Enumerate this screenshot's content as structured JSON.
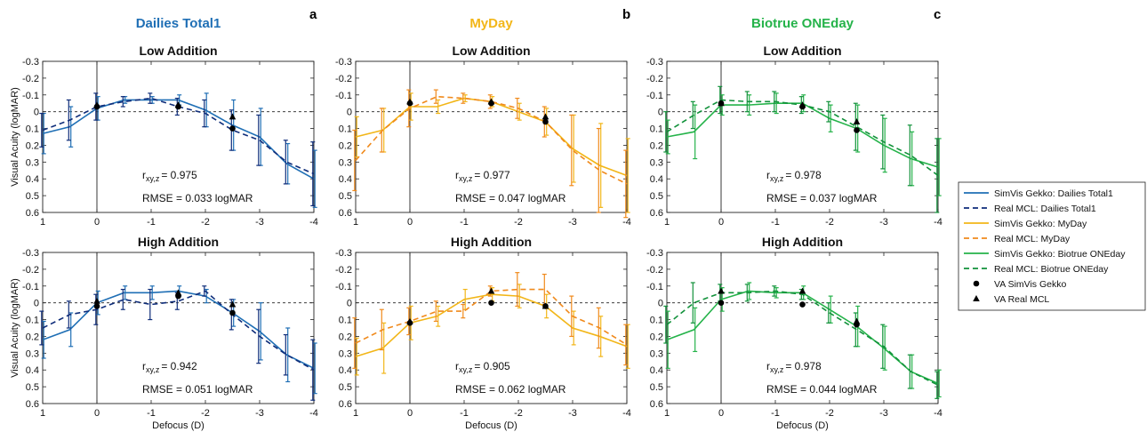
{
  "columns": [
    {
      "title": "Dailies Total1",
      "letter": "a",
      "color": "#1f6fb5",
      "dark": "#0f2d7a"
    },
    {
      "title": "MyDay",
      "letter": "b",
      "color": "#f2b618",
      "dark": "#f08a1c"
    },
    {
      "title": "Biotrue ONEday",
      "letter": "c",
      "color": "#25b34a",
      "dark": "#11913a"
    }
  ],
  "row_titles": [
    "Low Addition",
    "High Addition"
  ],
  "axes": {
    "ylabel": "Visual Acuity (logMAR)",
    "xlabel": "Defocus (D)",
    "xticks": [
      "1",
      "0",
      "-1",
      "-2",
      "-3",
      "-4"
    ],
    "yticks": [
      "-0.3",
      "-0.2",
      "-0.1",
      "0",
      "0.1",
      "0.2",
      "0.3",
      "0.4",
      "0.5",
      "0.6"
    ]
  },
  "legend": [
    {
      "label": "SimVis Gekko: Dailies Total1",
      "color": "#1f6fb5",
      "style": "solid"
    },
    {
      "label": "Real MCL: Dailies Total1",
      "color": "#0f2d7a",
      "style": "dashed"
    },
    {
      "label": "SimVis Gekko: MyDay",
      "color": "#f2b618",
      "style": "solid"
    },
    {
      "label": "Real MCL: MyDay",
      "color": "#f08a1c",
      "style": "dashed"
    },
    {
      "label": "SimVis Gekko: Biotrue ONEday",
      "color": "#25b34a",
      "style": "solid"
    },
    {
      "label": "Real MCL: Biotrue ONEday",
      "color": "#11913a",
      "style": "dashed"
    },
    {
      "label": "VA SimVis Gekko",
      "color": "#000000",
      "style": "circle"
    },
    {
      "label": "VA Real MCL",
      "color": "#000000",
      "style": "triangle"
    }
  ],
  "chart_data": [
    {
      "type": "line",
      "lens": "Dailies Total1",
      "addition": "Low Addition",
      "x": [
        1,
        0.5,
        0,
        -0.5,
        -1,
        -1.5,
        -2,
        -2.5,
        -3,
        -3.5,
        -4
      ],
      "ylim": [
        0.6,
        -0.3
      ],
      "xlim": [
        1,
        -4
      ],
      "series": [
        {
          "values": [
            0.13,
            0.09,
            -0.02,
            -0.07,
            -0.07,
            -0.07,
            -0.01,
            0.08,
            0.15,
            0.31,
            0.4
          ],
          "errors": [
            0.12,
            0.12,
            0.07,
            0.02,
            0.02,
            0.03,
            0.1,
            0.15,
            0.17,
            0.12,
            0.17
          ]
        },
        {
          "values": [
            0.11,
            0.05,
            -0.03,
            -0.06,
            -0.08,
            -0.03,
            0.01,
            0.11,
            0.17,
            0.3,
            0.37
          ],
          "errors": [
            0.1,
            0.12,
            0.08,
            0.03,
            0.03,
            0.05,
            0.08,
            0.12,
            0.15,
            0.13,
            0.19
          ]
        }
      ],
      "va_points": [
        {
          "x": 0,
          "sim": -0.03,
          "real": -0.04
        },
        {
          "x": -1.5,
          "sim": -0.03,
          "real": -0.04
        },
        {
          "x": -2.5,
          "sim": 0.1,
          "real": 0.03
        }
      ],
      "r_label": "r",
      "r_subscript": "xy,z",
      "r_value": "= 0.975",
      "rmse": "RMSE = 0.033 logMAR"
    },
    {
      "type": "line",
      "lens": "MyDay",
      "addition": "Low Addition",
      "x": [
        1,
        0.5,
        0,
        -0.5,
        -1,
        -1.5,
        -2,
        -2.5,
        -3,
        -3.5,
        -4
      ],
      "ylim": [
        0.6,
        -0.3
      ],
      "xlim": [
        1,
        -4
      ],
      "series": [
        {
          "values": [
            0.15,
            0.11,
            -0.03,
            -0.03,
            -0.08,
            -0.06,
            0.0,
            0.06,
            0.22,
            0.32,
            0.38
          ],
          "errors": [
            0.12,
            0.13,
            0.08,
            0.04,
            0.02,
            0.03,
            0.05,
            0.08,
            0.2,
            0.25,
            0.22
          ]
        },
        {
          "values": [
            0.29,
            0.11,
            -0.02,
            -0.09,
            -0.08,
            -0.06,
            -0.02,
            0.06,
            0.23,
            0.35,
            0.43
          ],
          "errors": [
            0.18,
            0.13,
            0.11,
            0.04,
            0.03,
            0.04,
            0.06,
            0.09,
            0.21,
            0.25,
            0.2
          ]
        }
      ],
      "va_points": [
        {
          "x": 0,
          "sim": -0.05,
          "real": -0.06
        },
        {
          "x": -1.5,
          "sim": -0.05,
          "real": -0.06
        },
        {
          "x": -2.5,
          "sim": 0.06,
          "real": 0.03
        }
      ],
      "r_label": "r",
      "r_subscript": "xy,z",
      "r_value": "= 0.977",
      "rmse": "RMSE = 0.047 logMAR"
    },
    {
      "type": "line",
      "lens": "Biotrue ONEday",
      "addition": "Low Addition",
      "x": [
        1,
        0.5,
        0,
        -0.5,
        -1,
        -1.5,
        -2,
        -2.5,
        -3,
        -3.5,
        -4
      ],
      "ylim": [
        0.6,
        -0.3
      ],
      "xlim": [
        1,
        -4
      ],
      "series": [
        {
          "values": [
            0.15,
            0.12,
            -0.04,
            -0.04,
            -0.05,
            -0.05,
            0.04,
            0.1,
            0.2,
            0.28,
            0.33
          ],
          "errors": [
            0.1,
            0.16,
            0.06,
            0.06,
            0.06,
            0.05,
            0.08,
            0.14,
            0.16,
            0.16,
            0.17
          ]
        },
        {
          "values": [
            0.12,
            0.02,
            -0.07,
            -0.06,
            -0.06,
            -0.04,
            0.0,
            0.09,
            0.18,
            0.26,
            0.38
          ],
          "errors": [
            0.12,
            0.08,
            0.08,
            0.06,
            0.06,
            0.05,
            0.06,
            0.14,
            0.16,
            0.18,
            0.22
          ]
        }
      ],
      "va_points": [
        {
          "x": 0,
          "sim": -0.05,
          "real": -0.05
        },
        {
          "x": -1.5,
          "sim": -0.03,
          "real": -0.04
        },
        {
          "x": -2.5,
          "sim": 0.11,
          "real": 0.06
        }
      ],
      "r_label": "r",
      "r_subscript": "xy,z",
      "r_value": "= 0.978",
      "rmse": "RMSE = 0.037 logMAR"
    },
    {
      "type": "line",
      "lens": "Dailies Total1",
      "addition": "High Addition",
      "x": [
        1,
        0.5,
        0,
        -0.5,
        -1,
        -1.5,
        -2,
        -2.5,
        -3,
        -3.5,
        -4
      ],
      "ylim": [
        0.6,
        -0.3
      ],
      "xlim": [
        1,
        -4
      ],
      "series": [
        {
          "values": [
            0.22,
            0.16,
            0.0,
            -0.06,
            -0.06,
            -0.07,
            -0.04,
            0.06,
            0.17,
            0.31,
            0.39
          ],
          "errors": [
            0.11,
            0.1,
            0.07,
            0.04,
            0.04,
            0.03,
            0.04,
            0.08,
            0.17,
            0.16,
            0.15
          ]
        },
        {
          "values": [
            0.15,
            0.07,
            0.04,
            -0.02,
            0.01,
            -0.01,
            -0.07,
            0.07,
            0.2,
            0.31,
            0.4
          ],
          "errors": [
            0.1,
            0.08,
            0.09,
            0.06,
            0.09,
            0.05,
            0.03,
            0.09,
            0.16,
            0.12,
            0.18
          ]
        }
      ],
      "va_points": [
        {
          "x": 0,
          "sim": 0.02,
          "real": -0.01
        },
        {
          "x": -1.5,
          "sim": -0.04,
          "real": -0.06
        },
        {
          "x": -2.5,
          "sim": 0.06,
          "real": 0.01
        }
      ],
      "r_label": "r",
      "r_subscript": "xy,z",
      "r_value": "= 0.942",
      "rmse": "RMSE = 0.051 logMAR"
    },
    {
      "type": "line",
      "lens": "MyDay",
      "addition": "High Addition",
      "x": [
        1,
        0.5,
        0,
        -0.5,
        -1,
        -1.5,
        -2,
        -2.5,
        -3,
        -3.5,
        -4
      ],
      "ylim": [
        0.6,
        -0.3
      ],
      "xlim": [
        1,
        -4
      ],
      "series": [
        {
          "values": [
            0.32,
            0.27,
            0.12,
            0.08,
            -0.02,
            -0.05,
            -0.04,
            0.02,
            0.15,
            0.2,
            0.26
          ],
          "errors": [
            0.11,
            0.15,
            0.1,
            0.06,
            0.06,
            0.04,
            0.07,
            0.07,
            0.1,
            0.12,
            0.13
          ]
        },
        {
          "values": [
            0.24,
            0.16,
            0.11,
            0.05,
            0.05,
            -0.07,
            -0.08,
            -0.08,
            0.08,
            0.15,
            0.25
          ],
          "errors": [
            0.15,
            0.12,
            0.08,
            0.06,
            0.04,
            0.03,
            0.1,
            0.09,
            0.12,
            0.12,
            0.12
          ]
        }
      ],
      "va_points": [
        {
          "x": 0,
          "sim": 0.12,
          "real": 0.11
        },
        {
          "x": -1.5,
          "sim": 0.0,
          "real": -0.07
        },
        {
          "x": -2.5,
          "sim": 0.02,
          "real": 0.02
        }
      ],
      "r_label": "r",
      "r_subscript": "xy,z",
      "r_value": "= 0.905",
      "rmse": "RMSE = 0.062 logMAR"
    },
    {
      "type": "line",
      "lens": "Biotrue ONEday",
      "addition": "High Addition",
      "x": [
        1,
        0.5,
        0,
        -0.5,
        -1,
        -1.5,
        -2,
        -2.5,
        -3,
        -3.5,
        -4
      ],
      "ylim": [
        0.6,
        -0.3
      ],
      "xlim": [
        1,
        -4
      ],
      "series": [
        {
          "values": [
            0.22,
            0.16,
            -0.02,
            -0.07,
            -0.06,
            -0.06,
            0.04,
            0.14,
            0.27,
            0.41,
            0.48
          ],
          "errors": [
            0.17,
            0.13,
            0.07,
            0.05,
            0.03,
            0.04,
            0.08,
            0.12,
            0.13,
            0.1,
            0.08
          ]
        },
        {
          "values": [
            0.13,
            0.0,
            -0.06,
            -0.06,
            -0.07,
            -0.05,
            0.06,
            0.16,
            0.26,
            0.41,
            0.49
          ],
          "errors": [
            0.11,
            0.12,
            0.05,
            0.05,
            0.03,
            0.03,
            0.06,
            0.1,
            0.13,
            0.1,
            0.08
          ]
        }
      ],
      "va_points": [
        {
          "x": 0,
          "sim": 0.0,
          "real": -0.07
        },
        {
          "x": -1.5,
          "sim": 0.01,
          "real": -0.07
        },
        {
          "x": -2.5,
          "sim": 0.13,
          "real": 0.11
        }
      ],
      "r_label": "r",
      "r_subscript": "xy,z",
      "r_value": "= 0.978",
      "rmse": "RMSE = 0.044 logMAR"
    }
  ]
}
